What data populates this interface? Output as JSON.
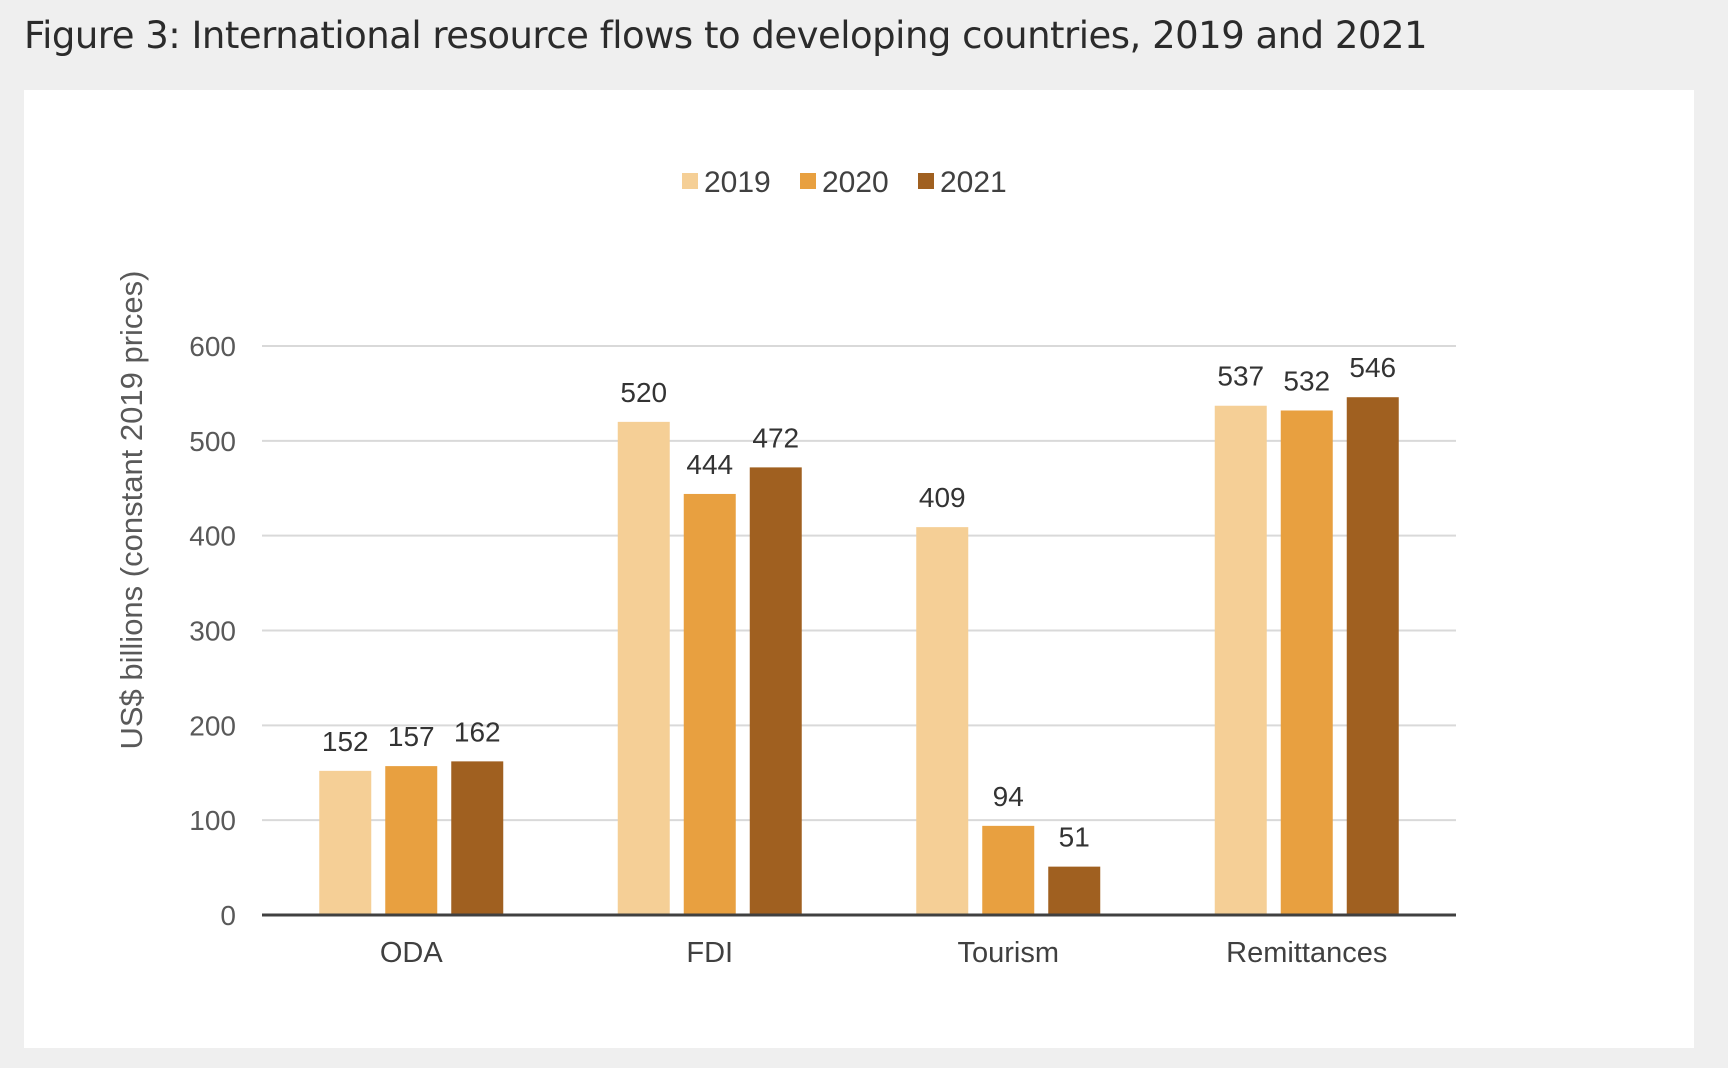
{
  "figure_title": "Figure 3: International resource flows to developing countries, 2019 and 2021",
  "chart_data": {
    "type": "bar",
    "title": "",
    "xlabel": "",
    "ylabel": "US$ billions (constant 2019 prices)",
    "ylim": [
      0,
      600
    ],
    "yticks": [
      0,
      100,
      200,
      300,
      400,
      500,
      600
    ],
    "grid": true,
    "legend_position": "top-center",
    "categories": [
      "ODA",
      "FDI",
      "Tourism",
      "Remittances"
    ],
    "series": [
      {
        "name": "2019",
        "color": "#f5cf96",
        "values": [
          152,
          520,
          409,
          537
        ]
      },
      {
        "name": "2020",
        "color": "#e8a040",
        "values": [
          157,
          444,
          94,
          532
        ]
      },
      {
        "name": "2021",
        "color": "#a06020",
        "values": [
          162,
          472,
          51,
          546
        ]
      }
    ]
  }
}
